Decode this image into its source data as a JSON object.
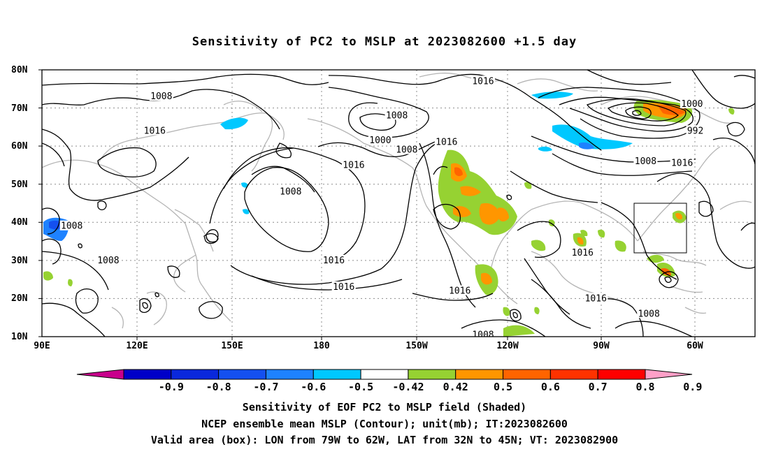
{
  "title": "Sensitivity of PC2 to MSLP at 2023082600 +1.5 day",
  "map": {
    "lat_labels": [
      "80N",
      "70N",
      "60N",
      "50N",
      "40N",
      "30N",
      "20N",
      "10N"
    ],
    "lon_labels": [
      "90E",
      "120E",
      "150E",
      "180",
      "150W",
      "120W",
      "90W",
      "60W"
    ],
    "contour_labels": [
      {
        "text": "1008",
        "lon": 126,
        "lat": 73
      },
      {
        "text": "1016",
        "lon": 124,
        "lat": 64
      },
      {
        "text": "1008",
        "lon": 99,
        "lat": 39
      },
      {
        "text": "1008",
        "lon": 110,
        "lat": 30
      },
      {
        "text": "1008",
        "lon": 165,
        "lat": 48
      },
      {
        "text": "1008",
        "lon": 197,
        "lat": 68
      },
      {
        "text": "1000",
        "lon": 192,
        "lat": 61.5
      },
      {
        "text": "1008",
        "lon": 200,
        "lat": 59
      },
      {
        "text": "1016",
        "lon": 212,
        "lat": 61
      },
      {
        "text": "1016",
        "lon": 184,
        "lat": 55
      },
      {
        "text": "1016",
        "lon": 178,
        "lat": 30
      },
      {
        "text": "1016",
        "lon": 181,
        "lat": 23
      },
      {
        "text": "1016",
        "lon": 223,
        "lat": 77
      },
      {
        "text": "1016",
        "lon": 216,
        "lat": 22
      },
      {
        "text": "1008",
        "lon": 223,
        "lat": 10.5
      },
      {
        "text": "1000",
        "lon": 286,
        "lat": 71
      },
      {
        "text": "992",
        "lon": 287,
        "lat": 64
      },
      {
        "text": "1008",
        "lon": 272,
        "lat": 56
      },
      {
        "text": "1016",
        "lon": 283,
        "lat": 55.5
      },
      {
        "text": "1016",
        "lon": 253,
        "lat": 32
      },
      {
        "text": "1016",
        "lon": 257,
        "lat": 20
      },
      {
        "text": "1008",
        "lon": 273,
        "lat": 16
      }
    ],
    "box_area": {
      "lon_min": 281,
      "lon_max": 298,
      "lat_min": 32,
      "lat_max": 45
    },
    "colors": {
      "outline": "#000000",
      "coast": "#b4b4b4",
      "grid": "#8c8c8c"
    }
  },
  "colorbar": {
    "labels": [
      "-0.9",
      "-0.8",
      "-0.7",
      "-0.6",
      "-0.5",
      "-0.42",
      "0.42",
      "0.5",
      "0.6",
      "0.7",
      "0.8",
      "0.9"
    ],
    "colors": [
      "#c8008c",
      "#0000c8",
      "#0a28dc",
      "#1450f0",
      "#1e82ff",
      "#00c8ff",
      "#ffffff",
      "#96d232",
      "#ff9600",
      "#ff6400",
      "#ff3200",
      "#ff0000",
      "#ffa0c8"
    ]
  },
  "captions": [
    "Sensitivity of EOF PC2 to MSLP field (Shaded)",
    "NCEP ensemble mean MSLP (Contour); unit(mb); IT:2023082600",
    "Valid area (box): LON from 79W to 62W, LAT from 32N to 45N; VT: 2023082900"
  ]
}
